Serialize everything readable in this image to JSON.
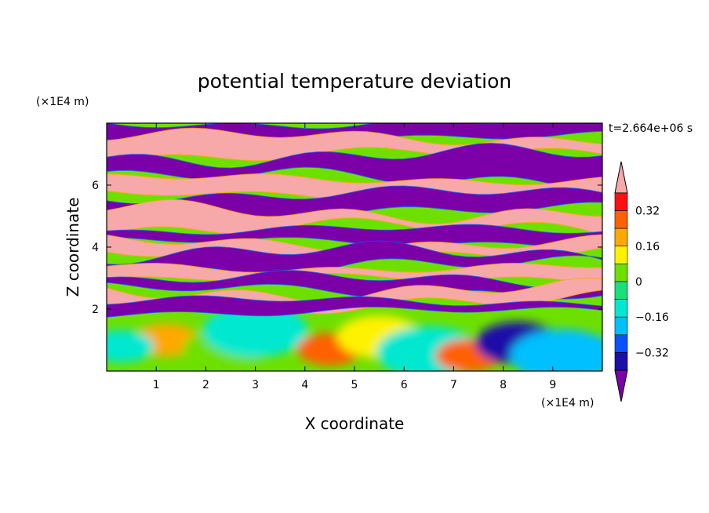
{
  "chart_data": {
    "type": "heatmap",
    "title": "potential temperature deviation",
    "xlabel": "X coordinate",
    "ylabel": "Z coordinate",
    "x_unit": "(×1E4 m)",
    "y_unit": "(×1E4 m)",
    "time_label": "t=2.664e+06 s",
    "xlim": [
      0,
      10
    ],
    "ylim": [
      0,
      8
    ],
    "x_ticks": [
      "1",
      "2",
      "3",
      "4",
      "5",
      "6",
      "7",
      "8",
      "9"
    ],
    "y_ticks": [
      "2",
      "4",
      "6"
    ],
    "colorbar": {
      "ticks": [
        "0.32",
        "0.16",
        "0",
        "−0.16",
        "−0.32"
      ],
      "tick_values": [
        0.32,
        0.16,
        0,
        -0.16,
        -0.32
      ],
      "levels": [
        -0.48,
        -0.4,
        -0.32,
        -0.24,
        -0.16,
        -0.08,
        0,
        0.08,
        0.16,
        0.24,
        0.32,
        0.4,
        0.48
      ],
      "colors": [
        "#7b00a8",
        "#1c0fa8",
        "#0a52ff",
        "#00c0ff",
        "#00e8d0",
        "#18e07a",
        "#6ee000",
        "#fff200",
        "#ffa800",
        "#ff6000",
        "#ff1010",
        "#f7a8a8"
      ],
      "extend": "both"
    },
    "structure": {
      "upper_layer": "alternating bands of strong positive (pink) and strong negative (purple) deviation, z from about 1.9 to 8",
      "lower_layer": "weak turbulent deviations (green/cyan/yellow) near the ground, z below about 1.8"
    },
    "bands": [
      {
        "z_bottom": 7.55,
        "z_top": 8.0,
        "value": -0.5
      },
      {
        "z_bottom": 6.95,
        "z_top": 7.55,
        "value": 0.5
      },
      {
        "z_bottom": 6.2,
        "z_top": 6.95,
        "value": -0.5
      },
      {
        "z_bottom": 5.7,
        "z_top": 6.2,
        "value": 0.5
      },
      {
        "z_bottom": 5.15,
        "z_top": 5.7,
        "value": -0.5
      },
      {
        "z_bottom": 4.55,
        "z_top": 5.15,
        "value": 0.5
      },
      {
        "z_bottom": 4.15,
        "z_top": 4.55,
        "value": -0.5
      },
      {
        "z_bottom": 3.8,
        "z_top": 4.15,
        "value": 0.5
      },
      {
        "z_bottom": 3.35,
        "z_top": 3.8,
        "value": -0.5
      },
      {
        "z_bottom": 2.95,
        "z_top": 3.35,
        "value": 0.5
      },
      {
        "z_bottom": 2.6,
        "z_top": 2.95,
        "value": -0.5
      },
      {
        "z_bottom": 2.25,
        "z_top": 2.6,
        "value": 0.5
      },
      {
        "z_bottom": 1.9,
        "z_top": 2.25,
        "value": -0.5
      }
    ],
    "lower_blobs": [
      {
        "x": 1.2,
        "z": 1.0,
        "value": 0.2
      },
      {
        "x": 2.4,
        "z": 0.7,
        "value": 0.05
      },
      {
        "x": 3.0,
        "z": 1.3,
        "value": -0.12
      },
      {
        "x": 4.5,
        "z": 0.7,
        "value": 0.3
      },
      {
        "x": 5.5,
        "z": 1.1,
        "value": 0.1
      },
      {
        "x": 6.5,
        "z": 0.6,
        "value": -0.1
      },
      {
        "x": 7.3,
        "z": 0.5,
        "value": 0.25
      },
      {
        "x": 8.3,
        "z": 0.9,
        "value": -0.35
      },
      {
        "x": 9.2,
        "z": 0.5,
        "value": -0.2
      },
      {
        "x": 0.3,
        "z": 0.8,
        "value": -0.12
      }
    ]
  }
}
